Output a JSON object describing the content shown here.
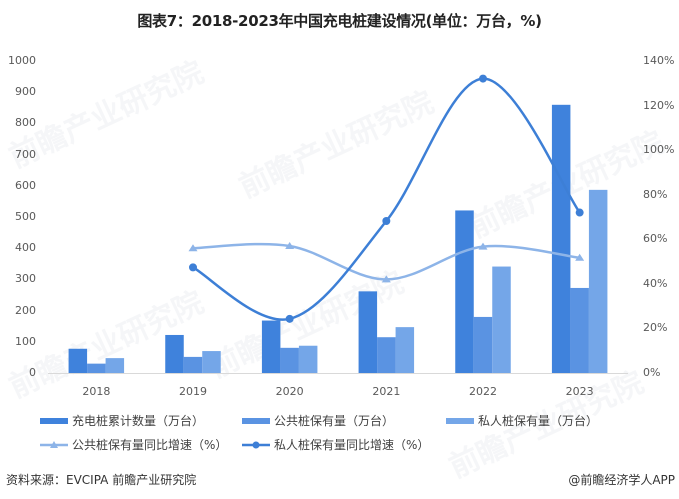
{
  "title": "图表7：2018-2023年中国充电桩建设情况(单位：万台，%)",
  "chart_data": {
    "type": "bar",
    "title": "图表7：2018-2023年中国充电桩建设情况(单位：万台，%)",
    "categories": [
      "2018",
      "2019",
      "2020",
      "2021",
      "2022",
      "2023"
    ],
    "series": [
      {
        "name": "充电桩累计数量（万台）",
        "type": "bar",
        "axis": "left",
        "color": "#3f82dc",
        "values": [
          77.7,
          121.9,
          168.1,
          261.7,
          521.0,
          859.6
        ]
      },
      {
        "name": "公共桩保有量（万台）",
        "type": "bar",
        "axis": "left",
        "color": "#5a93e2",
        "values": [
          30.0,
          51.6,
          80.7,
          114.7,
          179.7,
          272.6
        ]
      },
      {
        "name": "私人桩保有量（万台）",
        "type": "bar",
        "axis": "left",
        "color": "#74a6e8",
        "values": [
          47.7,
          70.3,
          87.4,
          147.0,
          341.2,
          587.0
        ]
      },
      {
        "name": "公共桩保有量同比增速（%）",
        "type": "line",
        "axis": "right",
        "marker": "triangle",
        "color": "#8db4e8",
        "values": [
          null,
          56.0,
          57.0,
          42.0,
          56.7,
          51.7
        ]
      },
      {
        "name": "私人桩保有量同比增速（%）",
        "type": "line",
        "axis": "right",
        "marker": "circle",
        "color": "#3d7fd6",
        "values": [
          null,
          47.4,
          24.3,
          68.2,
          132.1,
          72.0
        ]
      }
    ],
    "y_left": {
      "ticks": [
        "0",
        "100",
        "200",
        "300",
        "400",
        "500",
        "600",
        "700",
        "800",
        "900",
        "1000"
      ],
      "ylim": [
        0,
        1000
      ]
    },
    "y_right": {
      "ticks": [
        "0%",
        "20%",
        "40%",
        "60%",
        "80%",
        "100%",
        "120%",
        "140%"
      ],
      "ylim": [
        0,
        140
      ]
    },
    "xlabel": "",
    "ylabel": "",
    "grid": false,
    "legend_position": "bottom"
  },
  "legend": {
    "items": [
      {
        "label": "充电桩累计数量（万台）"
      },
      {
        "label": "公共桩保有量（万台）"
      },
      {
        "label": "私人桩保有量（万台）"
      },
      {
        "label": "公共桩保有量同比增速（%）"
      },
      {
        "label": "私人桩保有量同比增速（%）"
      }
    ]
  },
  "footer": {
    "source": "资料来源：EVCIPA 前瞻产业研究院",
    "credit": "@前瞻经济学人APP"
  },
  "watermark": "前瞻产业研究院"
}
